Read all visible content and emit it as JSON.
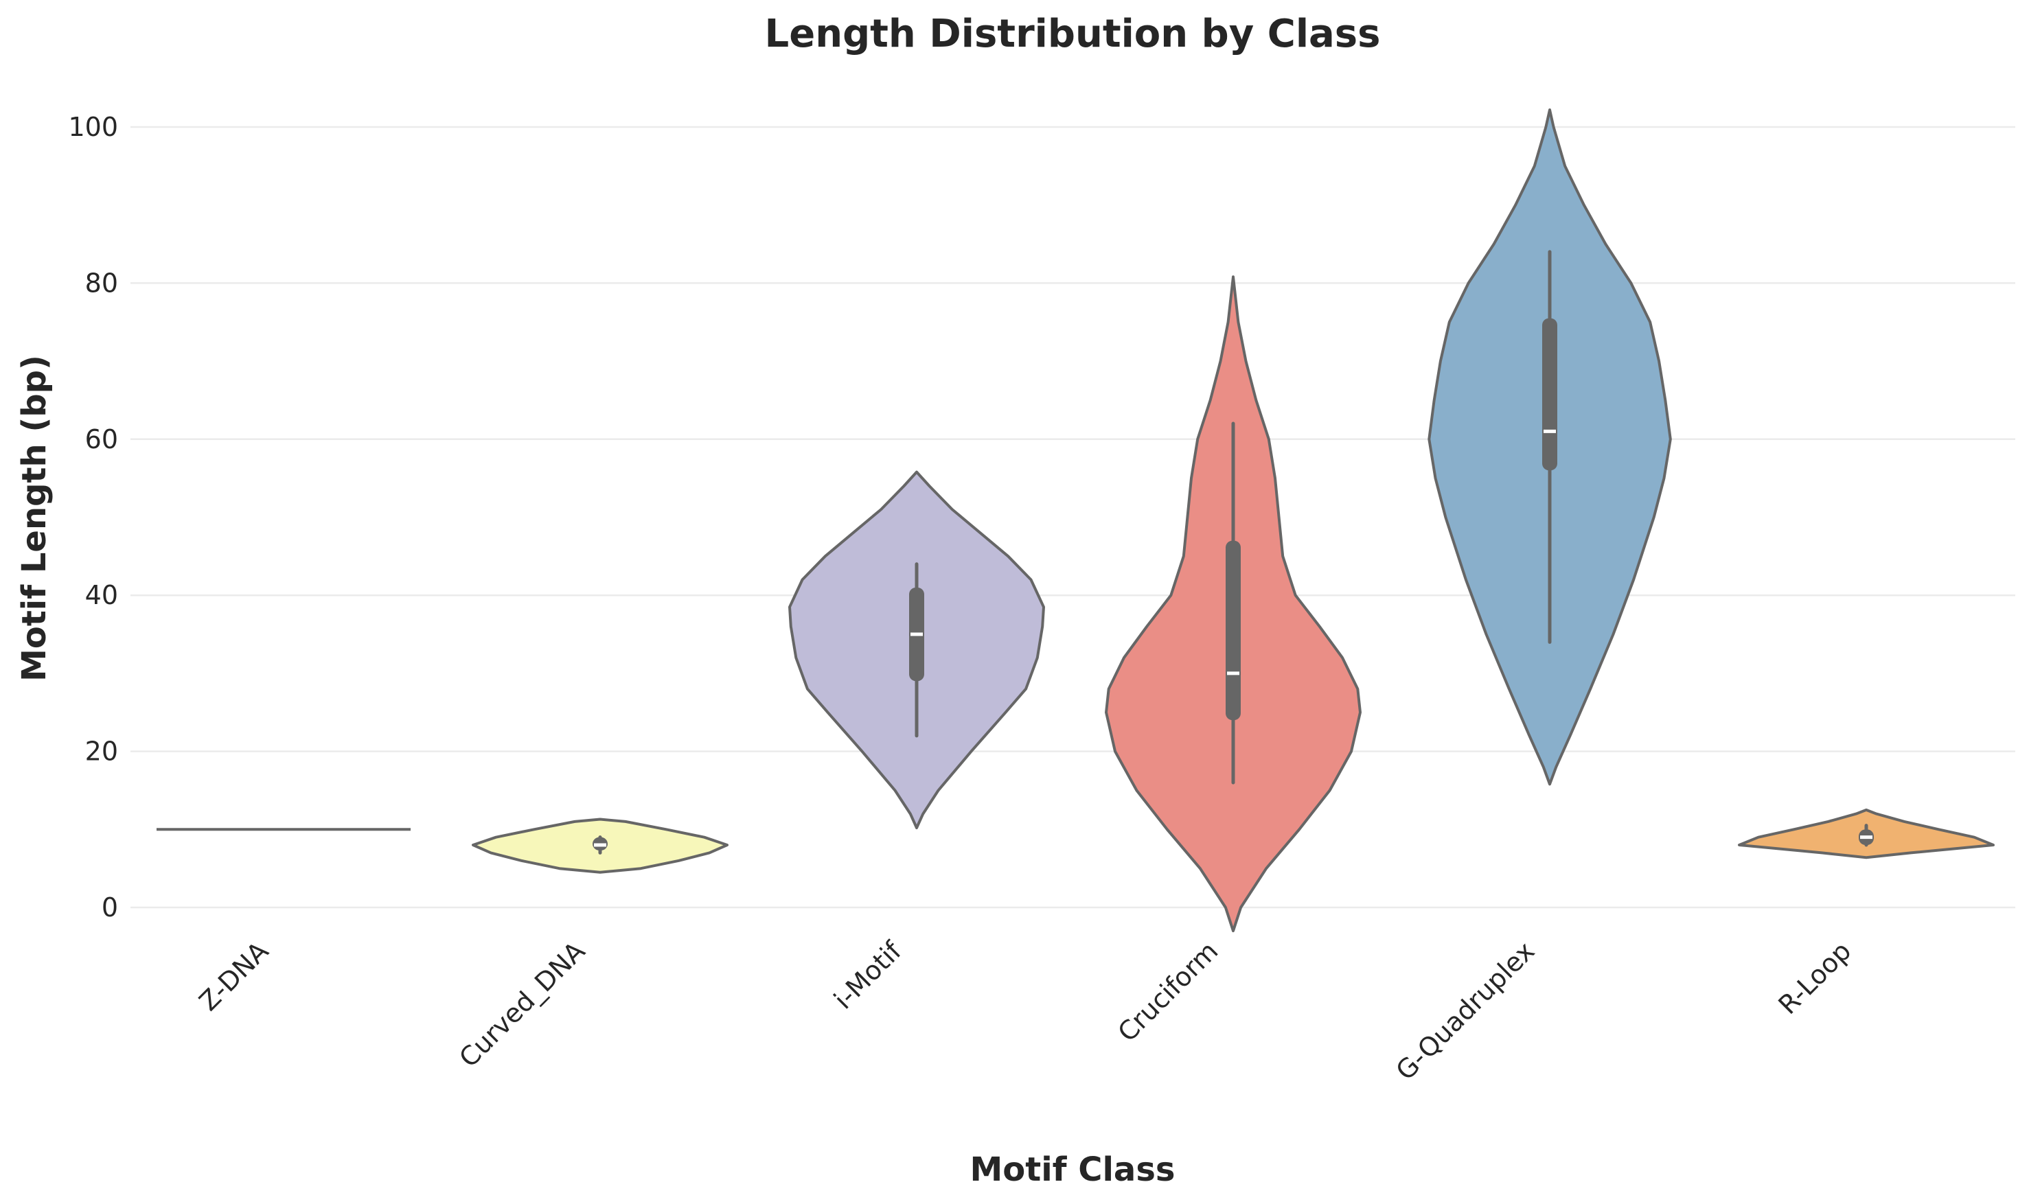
{
  "chart_data": {
    "type": "violin",
    "title": "Length Distribution by Class",
    "xlabel": "Motif Class",
    "ylabel": "Motif Length (bp)",
    "ylim": [
      -7,
      105
    ],
    "yticks": [
      0,
      20,
      40,
      60,
      80,
      100
    ],
    "grid": "horizontal",
    "categories": [
      "Z-DNA",
      "Curved_DNA",
      "i-Motif",
      "Cruciform",
      "G-Quadruplex",
      "R-Loop"
    ],
    "series": [
      {
        "category": "Z-DNA",
        "color": "#8dd3c7",
        "value": 10,
        "profile": [
          [
            10,
            1.0
          ]
        ]
      },
      {
        "category": "Curved_DNA",
        "color": "#f7f7ba",
        "whisker": [
          7,
          9
        ],
        "q1": 7.3,
        "median": 8,
        "q3": 9,
        "profile": [
          [
            4.5,
            0.0
          ],
          [
            5,
            0.32
          ],
          [
            6,
            0.62
          ],
          [
            7,
            0.86
          ],
          [
            8,
            1.0
          ],
          [
            9,
            0.82
          ],
          [
            10,
            0.52
          ],
          [
            11,
            0.2
          ],
          [
            11.3,
            0.0
          ]
        ]
      },
      {
        "category": "i-Motif",
        "color": "#bfbcd8",
        "whisker": [
          22,
          44
        ],
        "q1": 29,
        "median": 35,
        "q3": 41,
        "profile": [
          [
            10.2,
            0.0
          ],
          [
            12,
            0.05
          ],
          [
            15,
            0.17
          ],
          [
            20,
            0.43
          ],
          [
            25,
            0.7
          ],
          [
            28,
            0.86
          ],
          [
            32,
            0.95
          ],
          [
            36,
            0.99
          ],
          [
            38.5,
            1.0
          ],
          [
            42,
            0.9
          ],
          [
            45,
            0.72
          ],
          [
            48,
            0.5
          ],
          [
            51,
            0.28
          ],
          [
            54,
            0.1
          ],
          [
            55.8,
            0.0
          ]
        ]
      },
      {
        "category": "Cruciform",
        "color": "#ea8e86",
        "whisker": [
          16,
          62
        ],
        "q1": 24,
        "median": 30,
        "q3": 47,
        "profile": [
          [
            -3,
            0.0
          ],
          [
            0,
            0.06
          ],
          [
            5,
            0.26
          ],
          [
            10,
            0.52
          ],
          [
            15,
            0.76
          ],
          [
            20,
            0.93
          ],
          [
            25,
            1.0
          ],
          [
            28,
            0.98
          ],
          [
            32,
            0.86
          ],
          [
            36,
            0.68
          ],
          [
            40,
            0.49
          ],
          [
            45,
            0.39
          ],
          [
            50,
            0.36
          ],
          [
            55,
            0.33
          ],
          [
            60,
            0.28
          ],
          [
            65,
            0.18
          ],
          [
            70,
            0.1
          ],
          [
            75,
            0.04
          ],
          [
            80.8,
            0.0
          ]
        ]
      },
      {
        "category": "G-Quadruplex",
        "color": "#89afcb",
        "whisker": [
          34,
          84
        ],
        "q1": 56,
        "median": 61,
        "q3": 75.5,
        "profile": [
          [
            15.8,
            0.0
          ],
          [
            18,
            0.05
          ],
          [
            22,
            0.16
          ],
          [
            28,
            0.32
          ],
          [
            35,
            0.5
          ],
          [
            42,
            0.66
          ],
          [
            50,
            0.82
          ],
          [
            55,
            0.9
          ],
          [
            60,
            0.95
          ],
          [
            65,
            0.91
          ],
          [
            70,
            0.86
          ],
          [
            75,
            0.79
          ],
          [
            80,
            0.64
          ],
          [
            85,
            0.44
          ],
          [
            90,
            0.27
          ],
          [
            95,
            0.12
          ],
          [
            100,
            0.03
          ],
          [
            102.2,
            0.0
          ]
        ]
      },
      {
        "category": "R-Loop",
        "color": "#f0b270",
        "whisker": [
          8,
          10.5
        ],
        "q1": 8,
        "median": 9,
        "q3": 10,
        "profile": [
          [
            6.4,
            0.0
          ],
          [
            7,
            0.35
          ],
          [
            8,
            1.0
          ],
          [
            9,
            0.85
          ],
          [
            10,
            0.57
          ],
          [
            11,
            0.3
          ],
          [
            12,
            0.08
          ],
          [
            12.5,
            0.0
          ]
        ]
      }
    ]
  }
}
